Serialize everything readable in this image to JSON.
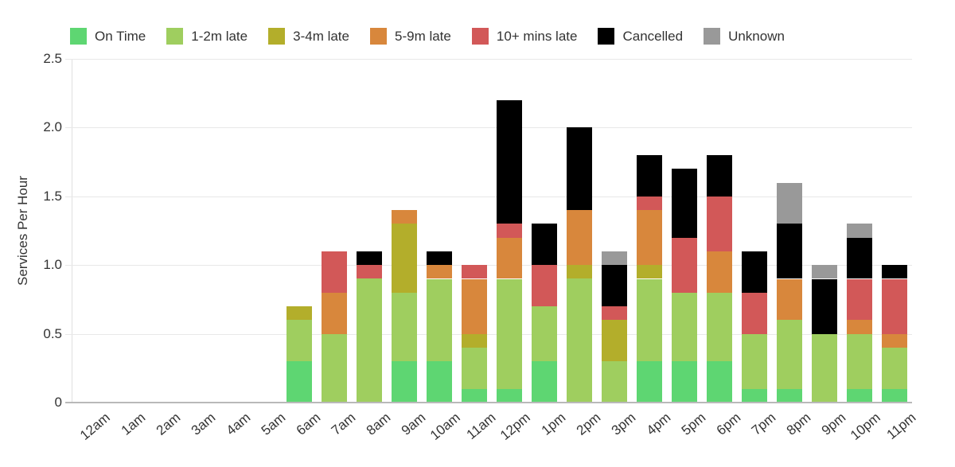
{
  "chart_data": {
    "type": "bar",
    "stacked": true,
    "title": "",
    "xlabel": "",
    "ylabel": "Services Per Hour",
    "ylim": [
      0,
      2.5
    ],
    "yticks": [
      0,
      0.5,
      1,
      1.5,
      2,
      2.5
    ],
    "ytick_labels": [
      "0",
      "0.5",
      "1.0",
      "1.5",
      "2.0",
      "2.5"
    ],
    "grid": "horizontal",
    "legend_position": "top",
    "categories": [
      "12am",
      "1am",
      "2am",
      "3am",
      "4am",
      "5am",
      "6am",
      "7am",
      "8am",
      "9am",
      "10am",
      "11am",
      "12pm",
      "1pm",
      "2pm",
      "3pm",
      "4pm",
      "5pm",
      "6pm",
      "7pm",
      "8pm",
      "9pm",
      "10pm",
      "11pm"
    ],
    "series": [
      {
        "name": "On Time",
        "color": "#5ed672",
        "values": [
          0,
          0,
          0,
          0,
          0,
          0,
          0.3,
          0,
          0,
          0.3,
          0.3,
          0.1,
          0.1,
          0.3,
          0,
          0,
          0.3,
          0.3,
          0.3,
          0.1,
          0.1,
          0,
          0.1,
          0.1
        ]
      },
      {
        "name": "1-2m late",
        "color": "#9fce5f",
        "values": [
          0,
          0,
          0,
          0,
          0,
          0,
          0.3,
          0.5,
          0.9,
          0.5,
          0.6,
          0.3,
          0.8,
          0.4,
          0.9,
          0.3,
          0.6,
          0.5,
          0.5,
          0.4,
          0.5,
          0.5,
          0.4,
          0.3
        ]
      },
      {
        "name": "3-4m late",
        "color": "#b3ae2b",
        "values": [
          0,
          0,
          0,
          0,
          0,
          0,
          0.1,
          0,
          0,
          0.5,
          0,
          0.1,
          0,
          0,
          0.1,
          0.3,
          0.1,
          0,
          0,
          0,
          0,
          0,
          0,
          0
        ]
      },
      {
        "name": "5-9m late",
        "color": "#d8873c",
        "values": [
          0,
          0,
          0,
          0,
          0,
          0,
          0,
          0.3,
          0,
          0.1,
          0.1,
          0.4,
          0.3,
          0,
          0.4,
          0,
          0.4,
          0,
          0.3,
          0,
          0.3,
          0,
          0.1,
          0.1
        ]
      },
      {
        "name": "10+ mins late",
        "color": "#d25858",
        "values": [
          0,
          0,
          0,
          0,
          0,
          0,
          0,
          0.3,
          0.1,
          0,
          0,
          0.1,
          0.1,
          0.3,
          0,
          0.1,
          0.1,
          0.4,
          0.4,
          0.3,
          0,
          0,
          0.3,
          0.4
        ]
      },
      {
        "name": "Cancelled",
        "color": "#000000",
        "values": [
          0,
          0,
          0,
          0,
          0,
          0,
          0,
          0,
          0.1,
          0,
          0.1,
          0,
          0.9,
          0.3,
          0.6,
          0.3,
          0.3,
          0.5,
          0.3,
          0.3,
          0.4,
          0.4,
          0.3,
          0.1
        ]
      },
      {
        "name": "Unknown",
        "color": "#999999",
        "values": [
          0,
          0,
          0,
          0,
          0,
          0,
          0,
          0,
          0,
          0,
          0,
          0,
          0,
          0,
          0,
          0.1,
          0,
          0,
          0,
          0,
          0.3,
          0.1,
          0.1,
          0
        ]
      }
    ]
  },
  "colors": {
    "grid": "#e8e8e8",
    "axis_line": "#e0e0e0",
    "baseline": "#b9b9b9",
    "text": "#333333",
    "background": "#ffffff"
  }
}
